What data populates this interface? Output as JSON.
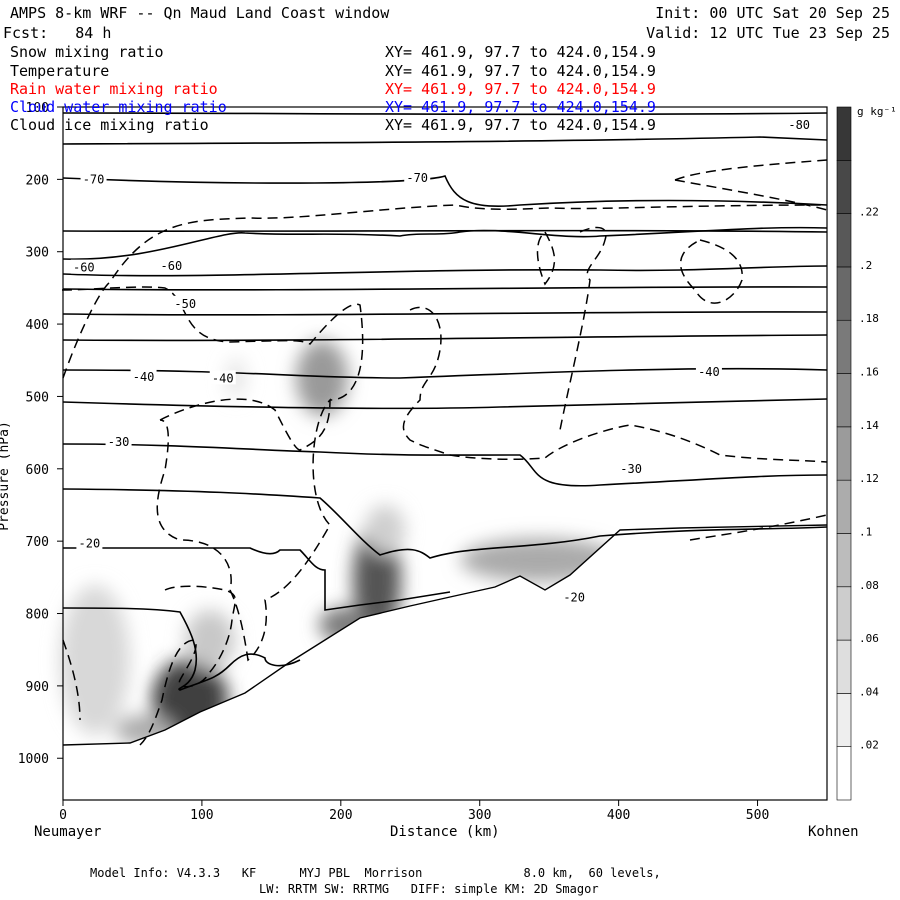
{
  "header": {
    "title": "AMPS 8-km WRF -- Qn Maud Land Coast window",
    "init": "Init: 00 UTC Sat 20 Sep 25",
    "fcst": "Fcst:   84 h",
    "valid": "Valid: 12 UTC Tue 23 Sep 25"
  },
  "legend": [
    {
      "name": "Snow mixing ratio",
      "xy": "XY= 461.9, 97.7 to 424.0,154.9",
      "color": "#000000"
    },
    {
      "name": "Temperature",
      "xy": "XY= 461.9, 97.7 to 424.0,154.9",
      "color": "#000000"
    },
    {
      "name": "Rain water mixing ratio",
      "xy": "XY= 461.9, 97.7 to 424.0,154.9",
      "color": "#ff0000"
    },
    {
      "name": "Cloud water mixing ratio",
      "xy": "XY= 461.9, 97.7 to 424.0,154.9",
      "color": "#0000ff"
    },
    {
      "name": "Cloud ice mixing ratio",
      "xy": "XY= 461.9, 97.7 to 424.0,154.9",
      "color": "#000000"
    }
  ],
  "axes": {
    "xlabel": "Distance (km)",
    "ylabel": "Pressure (hPa)",
    "left_end": "Neumayer",
    "right_end": "Kohnen"
  },
  "colorbar": {
    "unit": "g kg⁻¹",
    "ticks": [
      ".02",
      ".04",
      ".06",
      ".08",
      ".1",
      ".12",
      ".14",
      ".16",
      ".18",
      ".2",
      ".22"
    ]
  },
  "footer": {
    "line1": "Model Info: V4.3.3   KF      MYJ PBL  Morrison              8.0 km,  60 levels,",
    "line2": "LW: RRTM SW: RRTMG   DIFF: simple KM: 2D Smagor"
  },
  "chart_data": {
    "type": "contour",
    "xlim": [
      0,
      550
    ],
    "ylim": [
      1050,
      100
    ],
    "xticks": [
      0,
      100,
      200,
      300,
      400,
      500
    ],
    "yticks": [
      100,
      200,
      300,
      400,
      500,
      600,
      700,
      800,
      900,
      1000
    ],
    "temperature_labels": [
      {
        "label": "-80",
        "x": 530,
        "p": 125
      },
      {
        "label": "-70",
        "x": 22,
        "p": 200
      },
      {
        "label": "-70",
        "x": 255,
        "p": 198
      },
      {
        "label": "-60",
        "x": 15,
        "p": 322
      },
      {
        "label": "-60",
        "x": 78,
        "p": 320
      },
      {
        "label": "-50",
        "x": 88,
        "p": 372
      },
      {
        "label": "-40",
        "x": 58,
        "p": 473
      },
      {
        "label": "-40",
        "x": 115,
        "p": 475
      },
      {
        "label": "-40",
        "x": 465,
        "p": 466
      },
      {
        "label": "-30",
        "x": 40,
        "p": 563
      },
      {
        "label": "-30",
        "x": 409,
        "p": 600
      },
      {
        "label": "-20",
        "x": 19,
        "p": 703
      },
      {
        "label": "-20",
        "x": 368,
        "p": 778
      }
    ],
    "cloud_ice_max": [
      {
        "x": 225,
        "p": 770,
        "value": 0.22
      },
      {
        "x": 120,
        "p": 910,
        "value": 0.2
      },
      {
        "x": 190,
        "p": 480,
        "value": 0.12
      },
      {
        "x": 325,
        "p": 760,
        "value": 0.12
      }
    ]
  }
}
